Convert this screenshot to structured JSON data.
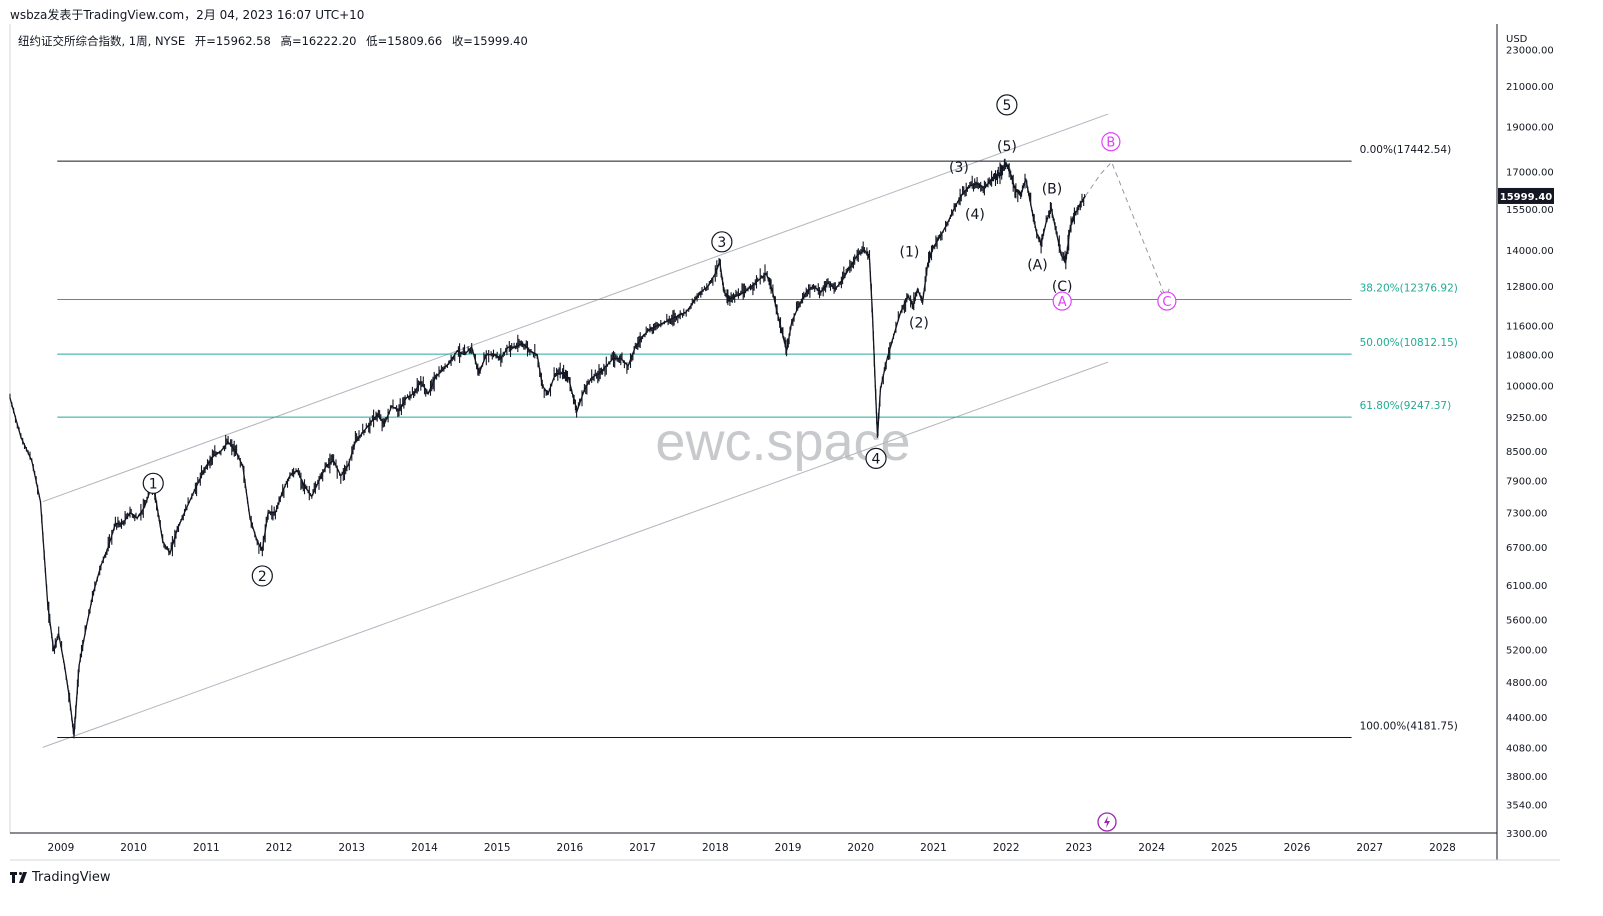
{
  "header": {
    "publisher": "wsbza发表于TradingView.com，2月 04, 2023 16:07 UTC+10"
  },
  "legend": {
    "symbol": "纽约证交所综合指数, 1周, NYSE",
    "open": "开=15962.58",
    "high": "高=16222.20",
    "low": "低=15809.66",
    "close": "收=15999.40"
  },
  "footer": {
    "brand": "TradingView"
  },
  "watermark": "ewc.space",
  "colors": {
    "price": "#131722",
    "fib": "#26a69a",
    "fib_text": "#22ab94",
    "magenta": "#e040fb",
    "channel": "#b2b5be"
  },
  "chart_data": {
    "type": "line",
    "y_currency": "USD",
    "y_scale": "log",
    "ylim": [
      3300,
      24500
    ],
    "xlim": [
      2008.3,
      2028.75
    ],
    "yticks": [
      3300,
      3540,
      3800,
      4080,
      4400,
      4800,
      5200,
      5600,
      6100,
      6700,
      7300,
      7900,
      8500,
      9250,
      10000,
      10800,
      11600,
      12800,
      14000,
      15500,
      17000,
      19000,
      21000,
      23000
    ],
    "ytick_labels": [
      "3300.00",
      "3540.00",
      "3800.00",
      "4080.00",
      "4400.00",
      "4800.00",
      "5200.00",
      "5600.00",
      "6100.00",
      "6700.00",
      "7300.00",
      "7900.00",
      "8500.00",
      "9250.00",
      "10000.00",
      "10800.00",
      "11600.00",
      "12800.00",
      "14000.00",
      "15500.00",
      "17000.00",
      "19000.00",
      "21000.00",
      "23000.00"
    ],
    "xticks": [
      2009,
      2010,
      2011,
      2012,
      2013,
      2014,
      2015,
      2016,
      2017,
      2018,
      2019,
      2020,
      2021,
      2022,
      2023,
      2024,
      2025,
      2026,
      2027,
      2028
    ],
    "xtick_labels": [
      "2009",
      "2010",
      "2011",
      "2012",
      "2013",
      "2014",
      "2015",
      "2016",
      "2017",
      "2018",
      "2019",
      "2020",
      "2021",
      "2022",
      "2023",
      "2024",
      "2025",
      "2026",
      "2027",
      "2028"
    ],
    "last_price": {
      "value": 15999.4,
      "label": "15999.40"
    },
    "series": [
      {
        "points": [
          [
            2008.3,
            9700
          ],
          [
            2008.45,
            8800
          ],
          [
            2008.6,
            8300
          ],
          [
            2008.72,
            7500
          ],
          [
            2008.82,
            5800
          ],
          [
            2008.9,
            5200
          ],
          [
            2008.97,
            5400
          ],
          [
            2009.05,
            5000
          ],
          [
            2009.12,
            4600
          ],
          [
            2009.18,
            4200
          ],
          [
            2009.25,
            5000
          ],
          [
            2009.35,
            5500
          ],
          [
            2009.45,
            6000
          ],
          [
            2009.55,
            6400
          ],
          [
            2009.65,
            6700
          ],
          [
            2009.75,
            7100
          ],
          [
            2009.85,
            7100
          ],
          [
            2009.95,
            7300
          ],
          [
            2010.05,
            7200
          ],
          [
            2010.15,
            7400
          ],
          [
            2010.25,
            7800
          ],
          [
            2010.3,
            7600
          ],
          [
            2010.4,
            6800
          ],
          [
            2010.5,
            6600
          ],
          [
            2010.6,
            7000
          ],
          [
            2010.7,
            7300
          ],
          [
            2010.8,
            7600
          ],
          [
            2010.9,
            7900
          ],
          [
            2011.0,
            8200
          ],
          [
            2011.1,
            8400
          ],
          [
            2011.2,
            8500
          ],
          [
            2011.3,
            8700
          ],
          [
            2011.4,
            8500
          ],
          [
            2011.5,
            8200
          ],
          [
            2011.6,
            7200
          ],
          [
            2011.7,
            6800
          ],
          [
            2011.77,
            6650
          ],
          [
            2011.85,
            7300
          ],
          [
            2011.95,
            7300
          ],
          [
            2012.05,
            7700
          ],
          [
            2012.15,
            8000
          ],
          [
            2012.25,
            8100
          ],
          [
            2012.35,
            7800
          ],
          [
            2012.45,
            7600
          ],
          [
            2012.55,
            7900
          ],
          [
            2012.65,
            8200
          ],
          [
            2012.75,
            8300
          ],
          [
            2012.85,
            8000
          ],
          [
            2012.95,
            8200
          ],
          [
            2013.05,
            8700
          ],
          [
            2013.15,
            8900
          ],
          [
            2013.25,
            9100
          ],
          [
            2013.35,
            9300
          ],
          [
            2013.45,
            9100
          ],
          [
            2013.55,
            9500
          ],
          [
            2013.65,
            9400
          ],
          [
            2013.75,
            9700
          ],
          [
            2013.85,
            9800
          ],
          [
            2013.95,
            10100
          ],
          [
            2014.05,
            9800
          ],
          [
            2014.15,
            10200
          ],
          [
            2014.25,
            10400
          ],
          [
            2014.35,
            10600
          ],
          [
            2014.45,
            10900
          ],
          [
            2014.55,
            10800
          ],
          [
            2014.65,
            11000
          ],
          [
            2014.75,
            10300
          ],
          [
            2014.85,
            10800
          ],
          [
            2014.95,
            10800
          ],
          [
            2015.05,
            10700
          ],
          [
            2015.15,
            11000
          ],
          [
            2015.25,
            11000
          ],
          [
            2015.35,
            11100
          ],
          [
            2015.45,
            10900
          ],
          [
            2015.55,
            10800
          ],
          [
            2015.62,
            10000
          ],
          [
            2015.7,
            9800
          ],
          [
            2015.8,
            10300
          ],
          [
            2015.9,
            10300
          ],
          [
            2015.98,
            10200
          ],
          [
            2016.05,
            9700
          ],
          [
            2016.1,
            9400
          ],
          [
            2016.2,
            9900
          ],
          [
            2016.3,
            10200
          ],
          [
            2016.4,
            10300
          ],
          [
            2016.5,
            10500
          ],
          [
            2016.6,
            10700
          ],
          [
            2016.7,
            10700
          ],
          [
            2016.8,
            10500
          ],
          [
            2016.9,
            11000
          ],
          [
            2017.0,
            11300
          ],
          [
            2017.1,
            11500
          ],
          [
            2017.2,
            11600
          ],
          [
            2017.3,
            11700
          ],
          [
            2017.4,
            11800
          ],
          [
            2017.5,
            11900
          ],
          [
            2017.6,
            12000
          ],
          [
            2017.7,
            12300
          ],
          [
            2017.8,
            12600
          ],
          [
            2017.9,
            12800
          ],
          [
            2018.0,
            13200
          ],
          [
            2018.06,
            13600
          ],
          [
            2018.12,
            12600
          ],
          [
            2018.2,
            12400
          ],
          [
            2018.3,
            12500
          ],
          [
            2018.4,
            12600
          ],
          [
            2018.5,
            12800
          ],
          [
            2018.6,
            13000
          ],
          [
            2018.7,
            13200
          ],
          [
            2018.78,
            12700
          ],
          [
            2018.85,
            12000
          ],
          [
            2018.92,
            11400
          ],
          [
            2018.98,
            10900
          ],
          [
            2019.05,
            11700
          ],
          [
            2019.15,
            12200
          ],
          [
            2019.25,
            12600
          ],
          [
            2019.35,
            12800
          ],
          [
            2019.45,
            12600
          ],
          [
            2019.55,
            12900
          ],
          [
            2019.65,
            12700
          ],
          [
            2019.75,
            13000
          ],
          [
            2019.85,
            13400
          ],
          [
            2019.95,
            13800
          ],
          [
            2020.05,
            14000
          ],
          [
            2020.12,
            13700
          ],
          [
            2020.16,
            12000
          ],
          [
            2020.2,
            10000
          ],
          [
            2020.23,
            8800
          ],
          [
            2020.27,
            9900
          ],
          [
            2020.35,
            10600
          ],
          [
            2020.45,
            11300
          ],
          [
            2020.55,
            12000
          ],
          [
            2020.65,
            12500
          ],
          [
            2020.72,
            12200
          ],
          [
            2020.78,
            12700
          ],
          [
            2020.85,
            12300
          ],
          [
            2020.92,
            13500
          ],
          [
            2021.0,
            14100
          ],
          [
            2021.1,
            14500
          ],
          [
            2021.2,
            15000
          ],
          [
            2021.3,
            15600
          ],
          [
            2021.4,
            16100
          ],
          [
            2021.5,
            16400
          ],
          [
            2021.6,
            16500
          ],
          [
            2021.7,
            16300
          ],
          [
            2021.8,
            16700
          ],
          [
            2021.88,
            16800
          ],
          [
            2021.95,
            17100
          ],
          [
            2022.0,
            17350
          ],
          [
            2022.05,
            17000
          ],
          [
            2022.12,
            16300
          ],
          [
            2022.2,
            16000
          ],
          [
            2022.27,
            16700
          ],
          [
            2022.35,
            15500
          ],
          [
            2022.42,
            14600
          ],
          [
            2022.48,
            14200
          ],
          [
            2022.55,
            15000
          ],
          [
            2022.62,
            15500
          ],
          [
            2022.7,
            14500
          ],
          [
            2022.76,
            13800
          ],
          [
            2022.82,
            13600
          ],
          [
            2022.88,
            14800
          ],
          [
            2022.95,
            15300
          ],
          [
            2023.02,
            15700
          ],
          [
            2023.09,
            15999.4
          ]
        ]
      }
    ],
    "projection": [
      [
        2023.09,
        15999.4
      ],
      [
        2023.3,
        16900
      ],
      [
        2023.45,
        17400
      ],
      [
        2024.2,
        12400
      ]
    ],
    "fib_levels": [
      {
        "value": 17442.54,
        "label": "0.00%(17442.54)",
        "color": "#131722"
      },
      {
        "value": 12376.92,
        "label": "38.20%(12376.92)",
        "color": "#26a69a"
      },
      {
        "value": 10812.15,
        "label": "50.00%(10812.15)",
        "color": "#26a69a"
      },
      {
        "value": 9247.37,
        "label": "61.80%(9247.37)",
        "color": "#26a69a"
      },
      {
        "value": 4181.75,
        "label": "100.00%(4181.75)",
        "color": "#131722"
      }
    ],
    "fib_range": [
      2008.95,
      2026.75
    ],
    "channel": {
      "upper": [
        [
          2008.75,
          7500
        ],
        [
          2023.4,
          19600
        ]
      ],
      "lower": [
        [
          2008.75,
          4080
        ],
        [
          2023.4,
          10600
        ]
      ]
    },
    "annotations": [
      {
        "text": "1",
        "x": 2010.27,
        "y": 7850,
        "style": "circled"
      },
      {
        "text": "2",
        "x": 2011.77,
        "y": 6240,
        "style": "circled"
      },
      {
        "text": "3",
        "x": 2018.09,
        "y": 14280,
        "style": "circled"
      },
      {
        "text": "4",
        "x": 2020.21,
        "y": 8350,
        "style": "circled"
      },
      {
        "text": "5",
        "x": 2022.01,
        "y": 20050,
        "style": "circled"
      },
      {
        "text": "(1)",
        "x": 2020.67,
        "y": 13950,
        "style": "paren"
      },
      {
        "text": "(2)",
        "x": 2020.8,
        "y": 11700,
        "style": "paren"
      },
      {
        "text": "(3)",
        "x": 2021.35,
        "y": 17200,
        "style": "paren"
      },
      {
        "text": "(4)",
        "x": 2021.57,
        "y": 15300,
        "style": "paren"
      },
      {
        "text": "(5)",
        "x": 2022.01,
        "y": 18100,
        "style": "paren"
      },
      {
        "text": "(A)",
        "x": 2022.43,
        "y": 13500,
        "style": "paren"
      },
      {
        "text": "(B)",
        "x": 2022.63,
        "y": 16300,
        "style": "paren"
      },
      {
        "text": "(C)",
        "x": 2022.77,
        "y": 12800,
        "style": "paren"
      },
      {
        "text": "A",
        "x": 2022.77,
        "y": 12330,
        "style": "magenta"
      },
      {
        "text": "B",
        "x": 2023.44,
        "y": 18300,
        "style": "magenta"
      },
      {
        "text": "C",
        "x": 2024.21,
        "y": 12330,
        "style": "magenta"
      }
    ]
  }
}
